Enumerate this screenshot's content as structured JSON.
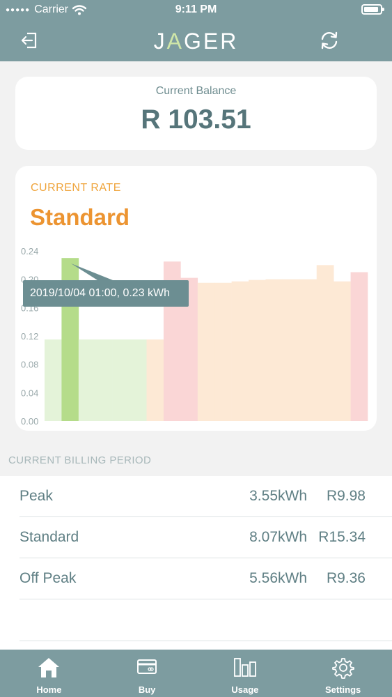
{
  "status_bar": {
    "carrier": "Carrier",
    "time": "9:11 PM"
  },
  "nav": {
    "logo_left": "J",
    "logo_accent": "A",
    "logo_right": "GER"
  },
  "balance": {
    "label": "Current Balance",
    "value": "R 103.51"
  },
  "rate": {
    "label": "CURRENT RATE",
    "value": "Standard"
  },
  "chart_data": {
    "type": "bar",
    "y_ticks": [
      "0.00",
      "0.04",
      "0.08",
      "0.12",
      "0.16",
      "0.20",
      "0.24"
    ],
    "ylim": [
      0,
      0.24
    ],
    "hours": [
      0,
      1,
      2,
      3,
      4,
      5,
      6,
      7,
      8,
      9,
      10,
      11,
      12,
      13,
      14,
      15,
      16,
      17,
      18
    ],
    "values": [
      0.115,
      0.23,
      0.115,
      0.115,
      0.115,
      0.115,
      0.115,
      0.225,
      0.202,
      0.195,
      0.195,
      0.197,
      0.199,
      0.2,
      0.2,
      0.2,
      0.22,
      0.197,
      0.21
    ],
    "rates": [
      "Off Peak",
      "Off Peak",
      "Off Peak",
      "Off Peak",
      "Off Peak",
      "Off Peak",
      "Standard",
      "Peak",
      "Peak",
      "Standard",
      "Standard",
      "Standard",
      "Standard",
      "Standard",
      "Standard",
      "Standard",
      "Standard",
      "Standard",
      "Peak"
    ],
    "selected_index": 1,
    "colors": {
      "Off Peak": "#e4f3d9",
      "Standard": "#fde9d5",
      "Peak": "#fad6d6",
      "selected": "#b5dc8a"
    },
    "tooltip": "2019/10/04 01:00, 0.23 kWh"
  },
  "billing": {
    "header": "CURRENT BILLING PERIOD",
    "rows": [
      {
        "label": "Peak",
        "kwh": "3.55kWh",
        "cost": "R9.98"
      },
      {
        "label": "Standard",
        "kwh": "8.07kWh",
        "cost": "R15.34"
      },
      {
        "label": "Off Peak",
        "kwh": "5.56kWh",
        "cost": "R9.36"
      }
    ]
  },
  "tabs": [
    {
      "label": "Home",
      "icon": "home-icon"
    },
    {
      "label": "Buy",
      "icon": "card-icon"
    },
    {
      "label": "Usage",
      "icon": "bar-chart-icon"
    },
    {
      "label": "Settings",
      "icon": "gear-icon"
    }
  ]
}
